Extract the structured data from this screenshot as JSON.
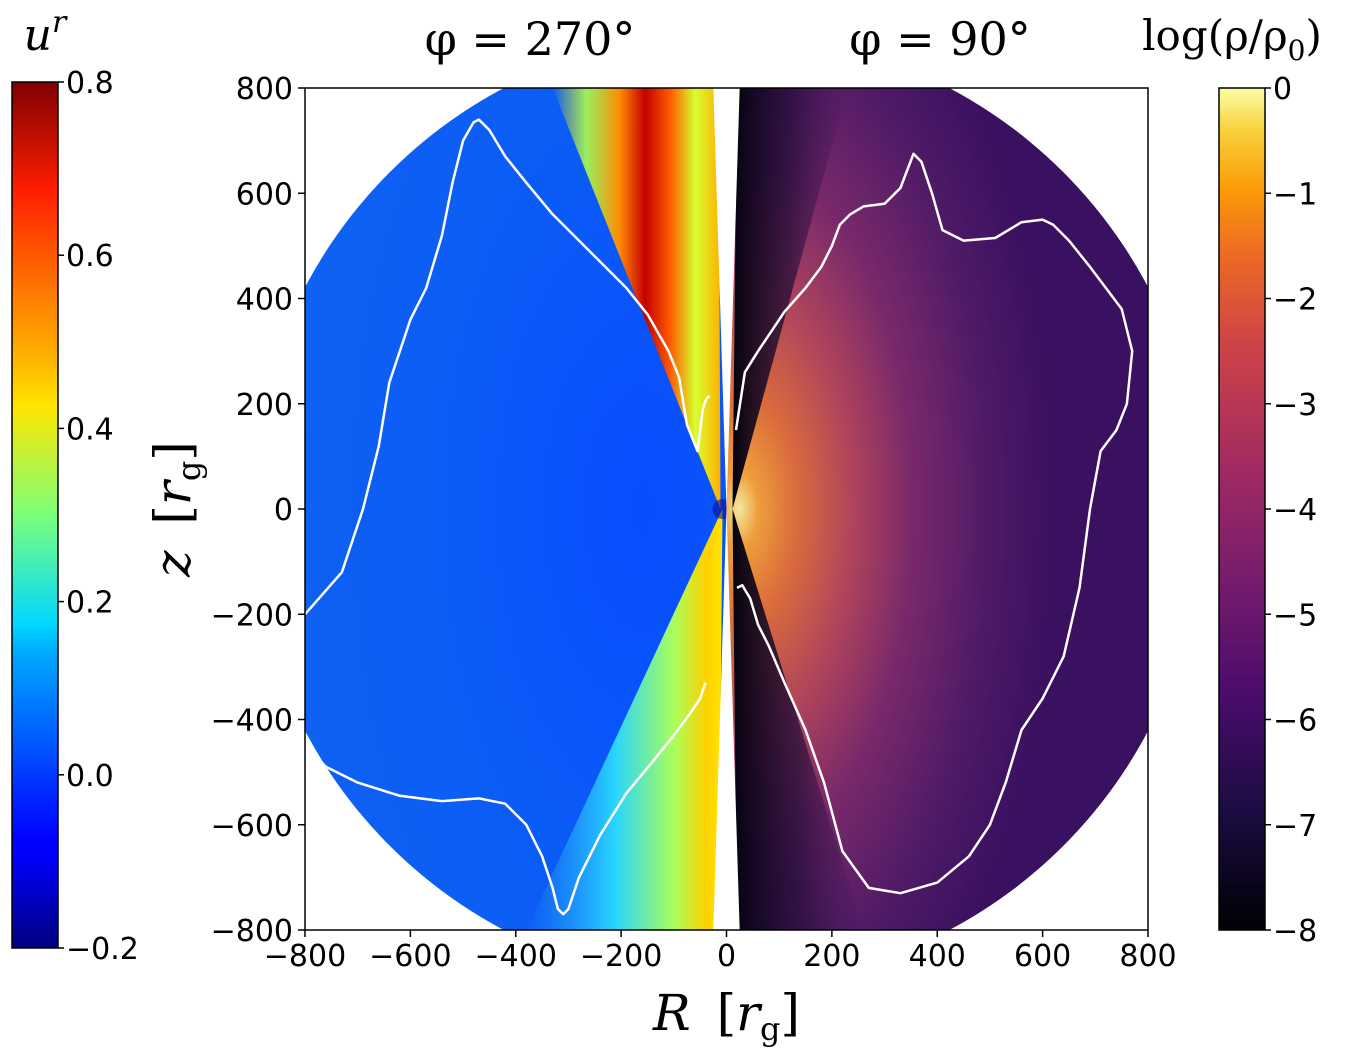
{
  "chart_data": {
    "type": "heatmap",
    "panels": [
      {
        "name": "left",
        "title": "φ = 270°",
        "quantity": "u^r",
        "colormap": "jet",
        "range": [
          -0.2,
          0.8
        ],
        "x_range": [
          -800,
          0
        ]
      },
      {
        "name": "right",
        "title": "φ = 90°",
        "quantity": "log(ρ/ρ0)",
        "colormap": "inferno",
        "range": [
          -8,
          0
        ],
        "x_range": [
          0,
          800
        ]
      }
    ],
    "xlabel": "R",
    "xlabel_unit": "r",
    "xlabel_unit_sub": "g",
    "ylabel": "z",
    "ylabel_unit": "r",
    "ylabel_unit_sub": "g",
    "xlim": [
      -800,
      800
    ],
    "ylim": [
      -800,
      800
    ],
    "xticks": [
      "−800",
      "−600",
      "−400",
      "−200",
      "0",
      "200",
      "400",
      "600",
      "800"
    ],
    "yticks": [
      "800",
      "600",
      "400",
      "200",
      "0",
      "−200",
      "−400",
      "−600",
      "−800"
    ],
    "ytick_values": [
      800,
      600,
      400,
      200,
      0,
      -200,
      -400,
      -600,
      -800
    ],
    "left_colorbar": {
      "label_base": "u",
      "label_sup": "r",
      "ticks": [
        "0.8",
        "0.6",
        "0.4",
        "0.2",
        "0.0",
        "−0.2"
      ],
      "tick_values": [
        0.8,
        0.6,
        0.4,
        0.2,
        0.0,
        -0.2
      ],
      "range": [
        -0.2,
        0.8
      ]
    },
    "right_colorbar": {
      "label": "log(ρ/ρ",
      "label_sub": "0",
      "label_close": ")",
      "ticks": [
        "0",
        "−1",
        "−2",
        "−3",
        "−4",
        "−5",
        "−6",
        "−7",
        "−8"
      ],
      "tick_values": [
        0,
        -1,
        -2,
        -3,
        -4,
        -5,
        -6,
        -7,
        -8
      ],
      "range": [
        -8,
        0
      ]
    },
    "contours": [
      {
        "name": "left-upper-contour",
        "x": [
          -800,
          -730,
          -690,
          -660,
          -640,
          -600,
          -570,
          -540,
          -520,
          -500,
          -480,
          -470,
          -450,
          -420,
          -380,
          -330,
          -280,
          -230,
          -190,
          -150,
          -110,
          -90,
          -75,
          -55,
          -45,
          -38,
          -32
        ],
        "y": [
          -200,
          -120,
          0,
          120,
          240,
          360,
          420,
          520,
          620,
          700,
          735,
          740,
          720,
          670,
          620,
          560,
          510,
          460,
          420,
          370,
          300,
          250,
          160,
          110,
          190,
          210,
          215
        ]
      },
      {
        "name": "left-lower-contour",
        "x": [
          -800,
          -760,
          -700,
          -620,
          -540,
          -470,
          -420,
          -380,
          -350,
          -330,
          -320,
          -310,
          -300,
          -280,
          -240,
          -190,
          -140,
          -100,
          -70,
          -50,
          -40
        ],
        "y": [
          -450,
          -490,
          -520,
          -545,
          -555,
          -550,
          -560,
          -600,
          -660,
          -720,
          -760,
          -770,
          -760,
          -700,
          -620,
          -540,
          -480,
          -430,
          -390,
          -360,
          -330
        ]
      },
      {
        "name": "right-contour",
        "x": [
          18,
          35,
          60,
          80,
          110,
          150,
          180,
          200,
          215,
          235,
          260,
          300,
          330,
          355,
          370,
          390,
          410,
          450,
          510,
          560,
          600,
          620,
          650,
          690,
          750,
          770,
          760,
          740,
          710,
          690,
          670,
          640,
          600,
          560,
          530,
          500,
          460,
          400,
          330,
          270,
          220,
          185,
          150,
          110,
          80,
          60,
          45,
          30,
          20
        ],
        "y": [
          150,
          260,
          300,
          330,
          375,
          420,
          460,
          500,
          540,
          560,
          575,
          580,
          610,
          675,
          660,
          600,
          530,
          510,
          515,
          545,
          550,
          540,
          510,
          460,
          380,
          300,
          200,
          150,
          110,
          0,
          -150,
          -280,
          -360,
          -420,
          -520,
          -600,
          -660,
          -710,
          -730,
          -720,
          -650,
          -520,
          -420,
          -330,
          -260,
          -220,
          -170,
          -145,
          -150
        ]
      }
    ]
  }
}
